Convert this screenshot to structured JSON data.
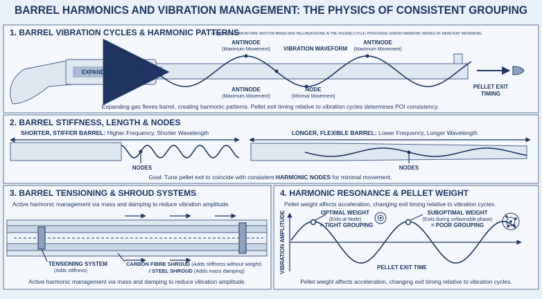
{
  "title": "BARREL HARMONICS AND VIBRATION MANAGEMENT: THE PHYSICS OF CONSISTENT GROUPING",
  "p1": {
    "heading": "1. BARREL VIBRATION CYCLES & HARMONIC PATTERNS",
    "note": "EXSAGORIGEN WAVEFORM: AROTOW BRKED AND PELLMGATE/ONE IN THE VIGGING CYCLE: RTFECFERS: ENDON HARMONIC WGRES OF MINISTENT MOVEMENG",
    "gas": "EXPANDING GAS PRESSURE",
    "antinode_1": "ANTINODE",
    "antinode_1_sub": "(Maximum Movement)",
    "waveform": "VIBRATION WAVEFORM",
    "antinode_2": "ANTINODE",
    "antinode_2_sub": "(Maximum Movement)",
    "antinode_3": "ANTINODE",
    "antinode_3_sub": "(Maximum Movement)",
    "node": "NODE",
    "node_sub": "(Minimal Movement)",
    "exit_1": "PELLET EXIT",
    "exit_2": "TIMING",
    "caption": "Expanding gas flexes barrel, creating harmonic patterns. Pellet exit timing relative to vibration cycles determines POI consistency."
  },
  "p2": {
    "heading": "2. BARREL STIFFNESS, LENGTH & NODES",
    "short_bold": "SHORTER, STIFFER BARREL:",
    "short_text": "Higher Frequency, Shorter Wavelength",
    "long_bold": "LONGER, FLEXIBLE BARREL:",
    "long_text": "Lower Frequency, Longer Wavelength",
    "nodes_1": "NODES",
    "nodes_2": "NODES",
    "goal_1": "Goal: Tune pellet exit to coincide with consistent",
    "goal_bold": "HARMONIC NODES",
    "goal_2": "for minimal movement."
  },
  "p3": {
    "heading": "3. BARREL TENSIONING & SHROUD SYSTEMS",
    "intro": "Active harmonic management via mass and damping to reduce vibration amplitude.",
    "tension": "TENSIONING SYSTEM",
    "tension_sub": "(Adds stiffness)",
    "carbon": "CARBON FIBRE SHROUD",
    "carbon_sub": "(Adds stiffness without weight)",
    "steel": "/ STEEL SHROUD",
    "steel_sub": "(Adds mass damping)",
    "caption": "Active harmonic management via mass and damping to reduce vibration amplitude."
  },
  "p4": {
    "heading": "4. HARMONIC RESONANCE & PELLET WEIGHT",
    "intro": "Pellet weight affects acceleration, changing exit timing relative to vibration cycles.",
    "y_axis": "VIBRATION AMPLITUDE",
    "x_axis": "PELLET EXIT TIME",
    "optimal": "OPTIMAL WEIGHT",
    "optimal_sub": "(Exits at Node)",
    "optimal_result": "= TIGHT GROUPING",
    "suboptimal": "SUBOPTIMAL WEIGHT",
    "suboptimal_sub": "(Exits during unfavorable phase)",
    "suboptimal_result": "= POOR GROUPING",
    "caption": "Pellet weight affects acceleration, changing exit timing relative to vibration cycles."
  }
}
